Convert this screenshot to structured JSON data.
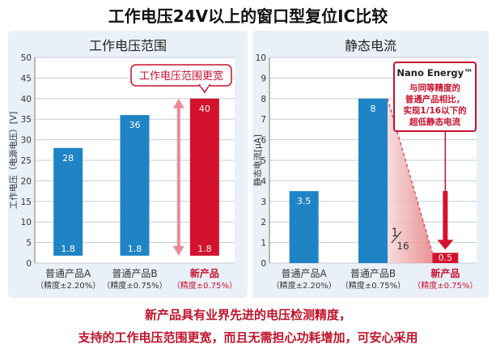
{
  "title": "工作电压24V以上的窗口型复位IC比较",
  "colors": {
    "panel_bg": "#eaf0f7",
    "blue": "#1f84c6",
    "red": "#d3122e",
    "callout_red": "#c8102e",
    "arrow_red": "#e9899a",
    "label_red": "#c8102e",
    "wedge_light": "#f7d7d7",
    "wedge_dark": "#e58080"
  },
  "chart_data": [
    {
      "type": "bar",
      "title": "工作电压范围",
      "ylabel": "工作电压（电源电压）[V]",
      "ylim": [
        0,
        50
      ],
      "yticks": [
        "0",
        "5",
        "10",
        "15",
        "20",
        "25",
        "30",
        "35",
        "40",
        "45",
        "50"
      ],
      "grid": true,
      "categories": [
        {
          "name": "普通产品A",
          "note": "（精度±2.20%）",
          "highlight": false
        },
        {
          "name": "普通产品B",
          "note": "（精度±0.75%）",
          "highlight": false
        },
        {
          "name": "新产品",
          "note": "（精度±0.75%）",
          "highlight": true
        }
      ],
      "values_max": [
        28,
        36,
        40
      ],
      "values_min": [
        1.8,
        1.8,
        1.8
      ],
      "max_labels": [
        "28",
        "36",
        "40"
      ],
      "min_labels": [
        "1.8",
        "1.8",
        "1.8"
      ],
      "callout": "工作电压范围更宽"
    },
    {
      "type": "bar",
      "title": "静态电流",
      "ylabel": "静态电流[μA]",
      "ylim": [
        0,
        10
      ],
      "yticks": [
        "0",
        "1",
        "2",
        "3",
        "4",
        "5",
        "6",
        "7",
        "8",
        "9",
        "10"
      ],
      "grid": true,
      "categories": [
        {
          "name": "普通产品A",
          "note": "（精度±2.20%）",
          "highlight": false
        },
        {
          "name": "普通产品B",
          "note": "（精度±0.75%）",
          "highlight": false
        },
        {
          "name": "新产品",
          "note": "（精度±0.75%）",
          "highlight": true
        }
      ],
      "values": [
        3.5,
        8,
        0.5
      ],
      "value_labels": [
        "3.5",
        "8",
        "0.5"
      ],
      "ratio_num": "1",
      "ratio_den": "16",
      "callout": {
        "brand": "Nano Energy™",
        "lines": [
          "与同等精度的",
          "普通产品相比，",
          "实现1/16以下的",
          "超低静态电流"
        ]
      }
    }
  ],
  "footnote": [
    "新产品具有业界先进的电压检测精度，",
    "支持的工作电压范围更宽，而且无需担心功耗增加，可安心采用"
  ]
}
